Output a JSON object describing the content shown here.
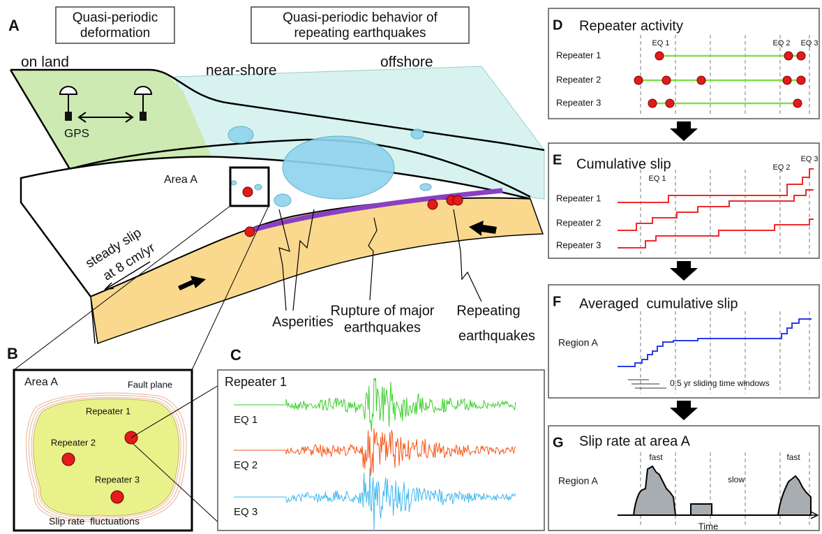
{
  "panel_a": {
    "label": "A",
    "box_left": [
      "Quasi-periodic",
      "deformation"
    ],
    "box_right": [
      "Quasi-periodic behavior of",
      "repeating earthquakes"
    ],
    "on_land": "on land",
    "near_shore": "near-shore",
    "offshore": "offshore",
    "gps": "GPS",
    "area": "Area A",
    "steady_slip": [
      "steady slip",
      "at 8 cm/yr"
    ],
    "asperities": "Asperities",
    "rupture": [
      "Rupture of major",
      "earthquakes"
    ],
    "repeating": [
      "Repeating",
      "earthquakes"
    ]
  },
  "panel_b": {
    "label": "B",
    "title": "Area A",
    "fault_plane": "Fault plane",
    "repeaters": [
      "Repeater 1",
      "Repeater 2",
      "Repeater 3"
    ],
    "caption": "Slip rate  fluctuations"
  },
  "panel_c": {
    "label": "C",
    "title": "Repeater 1",
    "events": [
      "EQ 1",
      "EQ 2",
      "EQ 3"
    ]
  },
  "panel_d": {
    "label": "D",
    "title": "Repeater activity",
    "rows": [
      "Repeater 1",
      "Repeater 2",
      "Repeater 3"
    ],
    "events": [
      "EQ 1",
      "EQ 2",
      "EQ 3"
    ]
  },
  "panel_e": {
    "label": "E",
    "title": "Cumulative slip",
    "rows": [
      "Repeater 1",
      "Repeater 2",
      "Repeater 3"
    ],
    "events": [
      "EQ 1",
      "EQ 2",
      "EQ 3"
    ]
  },
  "panel_f": {
    "label": "F",
    "title": "Averaged  cumulative slip",
    "row": "Region A",
    "note": "0.5 yr sliding time windows"
  },
  "panel_g": {
    "label": "G",
    "title": "Slip rate at area A",
    "row": "Region A",
    "fast": [
      "fast",
      "fast"
    ],
    "slow": "slow",
    "axis": "Time"
  }
}
